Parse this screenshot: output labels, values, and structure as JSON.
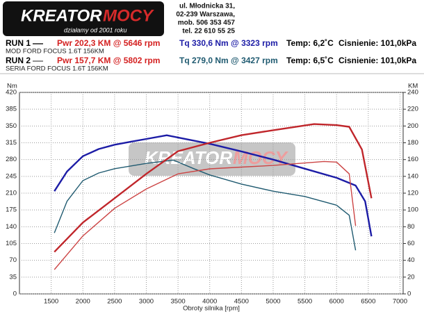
{
  "header": {
    "logo_main": "KREATOR",
    "logo_accent": "MOCY",
    "tagline": "działamy od 2001 roku",
    "address": [
      "ul. Młodnicka 31,",
      "02-239  Warszawa,",
      "mob.  506 353 457",
      "tel.  22 610 55 25"
    ]
  },
  "runs": [
    {
      "label": "RUN 1",
      "power": "Pwr  202,3 KM @ 5646 rpm",
      "torque": "Tq  330,6 Nm @ 3323 rpm",
      "temp": "Temp: 6,2˚C",
      "pressure": "Cisnienie: 101,0kPa",
      "car": "MOD FORD FOCUS 1.6T 156KM"
    },
    {
      "label": "RUN 2",
      "power": "Pwr  157,7 KM @ 5802 rpm",
      "torque": "Tq  279,0 Nm @ 3427 rpm",
      "temp": "Temp: 6,5˚C",
      "pressure": "Cisnienie: 101,0kPa",
      "car": "SERIA FORD FOCUS 1.6T 156KM"
    }
  ],
  "chart_data": {
    "type": "line",
    "xlabel": "Obroty silnika [rpm]",
    "ylabel": "Nm",
    "y2label": "KM",
    "xlim": [
      1000,
      7050
    ],
    "xticks": [
      1500,
      2000,
      2500,
      3000,
      3500,
      4000,
      4500,
      5000,
      5500,
      6000,
      6500,
      7000
    ],
    "ylim": [
      0,
      420
    ],
    "yticks": [
      0,
      35,
      70,
      105,
      140,
      175,
      210,
      245,
      280,
      315,
      350,
      385,
      420
    ],
    "y2lim": [
      0,
      240
    ],
    "y2ticks": [
      0,
      20,
      40,
      60,
      80,
      100,
      120,
      140,
      160,
      180,
      200,
      220,
      240
    ],
    "grid": true,
    "series": [
      {
        "color": "#1c1ca6",
        "axis": "y",
        "x": [
          1550,
          1750,
          2000,
          2250,
          2500,
          2750,
          3000,
          3323,
          3500,
          4000,
          4500,
          5000,
          5500,
          6000,
          6300,
          6450,
          6550
        ],
        "values": [
          214,
          255,
          287,
          302,
          311,
          317,
          323,
          330.6,
          326,
          313,
          297,
          280,
          261,
          242,
          226,
          193,
          120
        ]
      },
      {
        "color": "#1f5a70",
        "axis": "y",
        "x": [
          1550,
          1750,
          2000,
          2250,
          2500,
          3000,
          3427,
          3750,
          4000,
          4500,
          5000,
          5500,
          6000,
          6200,
          6300
        ],
        "values": [
          127,
          193,
          236,
          252,
          261,
          272,
          279,
          261,
          248,
          229,
          214,
          203,
          185,
          164,
          91
        ]
      },
      {
        "color": "#c0262b",
        "axis": "y2",
        "x": [
          1550,
          2000,
          2500,
          3000,
          3500,
          4000,
          4500,
          5000,
          5646,
          6000,
          6200,
          6400,
          6550
        ],
        "values": [
          50,
          85,
          114,
          143,
          170,
          180,
          189,
          195,
          202.3,
          201,
          199,
          172,
          114
        ]
      },
      {
        "color": "#cc4444",
        "axis": "y2",
        "x": [
          1550,
          2000,
          2500,
          3000,
          3500,
          4000,
          4500,
          5000,
          5802,
          6000,
          6200,
          6300
        ],
        "values": [
          29,
          69,
          102,
          125,
          143,
          149,
          151,
          153,
          157.7,
          157,
          143,
          81
        ]
      }
    ]
  }
}
